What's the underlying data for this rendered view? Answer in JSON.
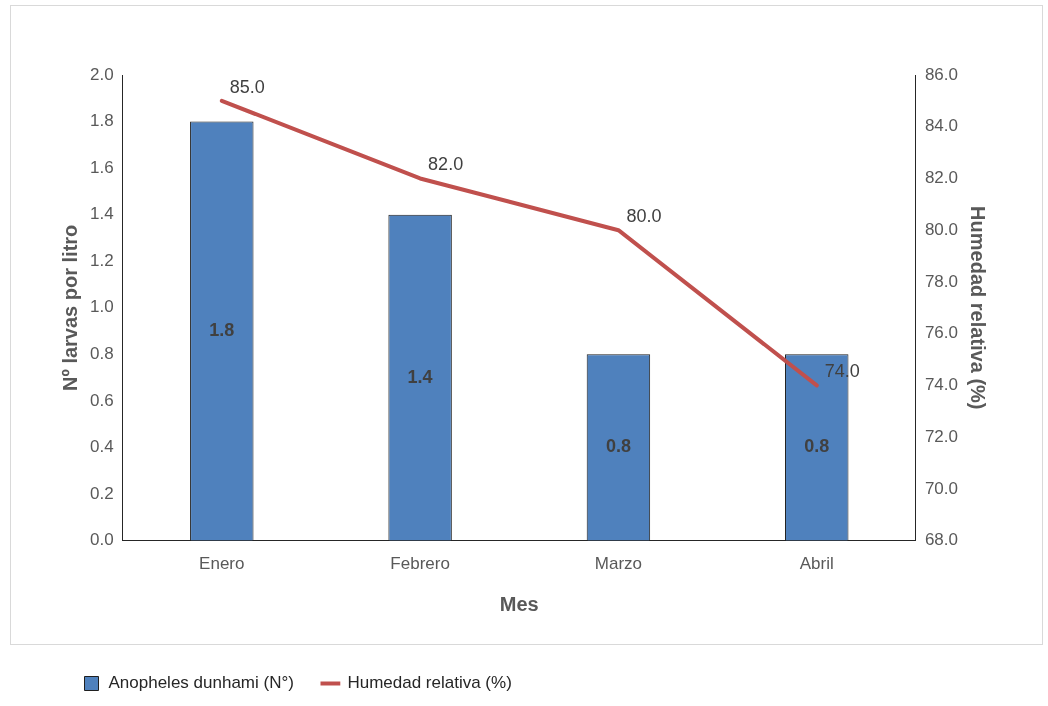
{
  "chart_data": {
    "type": "bar",
    "xlabel": "Mes",
    "ylabel": "Nº larvas por litro",
    "y2label": "Humedad relativa (%)",
    "categories": [
      "Enero",
      "Febrero",
      "Marzo",
      "Abril"
    ],
    "series": [
      {
        "name": "Anopheles dunhami (N°)",
        "color": "#4f81bd",
        "values": [
          1.8,
          1.4,
          0.8,
          0.8
        ],
        "value_labels": [
          "1.8",
          "1.4",
          "0.8",
          "0.8"
        ]
      },
      {
        "name": "Humedad relativa (%)",
        "type": "line",
        "axis": "y2",
        "color": "#c0504d",
        "marker": "none",
        "values": [
          85,
          82,
          80,
          74
        ],
        "value_labels": [
          "85.0",
          "82.0",
          "80.0",
          "74.0"
        ]
      }
    ],
    "ylim": [
      0,
      2
    ],
    "yticks": [
      {
        "value": 0,
        "label": "0.0"
      },
      {
        "value": 0.2,
        "label": "0.2"
      },
      {
        "value": 0.4,
        "label": "0.4"
      },
      {
        "value": 0.6,
        "label": "0.6"
      },
      {
        "value": 0.8,
        "label": "0.8"
      },
      {
        "value": 1,
        "label": "1.0"
      },
      {
        "value": 1.2,
        "label": "1.2"
      },
      {
        "value": 1.4,
        "label": "1.4"
      },
      {
        "value": 1.6,
        "label": "1.6"
      },
      {
        "value": 1.8,
        "label": "1.8"
      },
      {
        "value": 2,
        "label": "2.0"
      }
    ],
    "y2lim": [
      68,
      86
    ],
    "y2ticks": [
      {
        "value": 68,
        "label": "68.0"
      },
      {
        "value": 70,
        "label": "70.0"
      },
      {
        "value": 72,
        "label": "72.0"
      },
      {
        "value": 74,
        "label": "74.0"
      },
      {
        "value": 76,
        "label": "76.0"
      },
      {
        "value": 78,
        "label": "78.0"
      },
      {
        "value": 80,
        "label": "80.0"
      },
      {
        "value": 82,
        "label": "82.0"
      },
      {
        "value": 84,
        "label": "84.0"
      },
      {
        "value": 86,
        "label": "86.0"
      }
    ],
    "grid": false,
    "legend": "bottom left"
  }
}
